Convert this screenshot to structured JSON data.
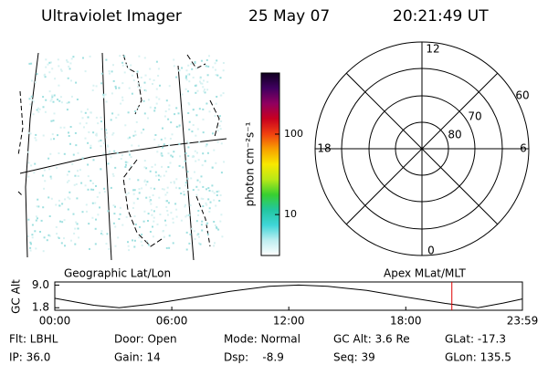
{
  "header": {
    "instrument": "Ultraviolet Imager",
    "date": "25 May 07",
    "time": "20:21:49 UT"
  },
  "colorbar": {
    "label": "photon cm⁻²s⁻¹",
    "log": true,
    "clim": [
      3.1,
      575
    ],
    "ticks": [
      10,
      100
    ],
    "colors": [
      "#ffffff",
      "#bdeef0",
      "#3fd6d8",
      "#22c6a0",
      "#38d030",
      "#b8e818",
      "#f8e800",
      "#f8a000",
      "#f04010",
      "#c80020",
      "#900060",
      "#400060",
      "#100020"
    ]
  },
  "polar": {
    "labels": {
      "top": "12",
      "bottom": "0",
      "left": "18",
      "right": "6"
    },
    "rings": [
      "60",
      "70",
      "80"
    ]
  },
  "altitude_plot": {
    "left_label": "Geographic Lat/Lon",
    "right_label": "Apex MLat/MLT",
    "ylabel": "GC Alt",
    "ylim": [
      1.0,
      10.0
    ],
    "yticks": [
      {
        "value": 9.0,
        "label": "9.0"
      },
      1.8
    ],
    "xlim": [
      0,
      23.983
    ],
    "xticks": [
      {
        "value": 0,
        "label": "00:00"
      },
      {
        "value": 6,
        "label": "06:00"
      },
      {
        "value": 12,
        "label": "12:00"
      },
      {
        "value": 18,
        "label": "18:00"
      },
      {
        "value": 23.983,
        "label": "23:59"
      }
    ],
    "x": [
      0,
      1,
      2,
      3.3,
      5,
      7,
      9,
      11,
      12.5,
      14,
      16,
      18,
      20,
      21.7,
      23,
      23.98
    ],
    "values": [
      4.8,
      3.7,
      2.6,
      1.8,
      3.0,
      5.0,
      7.0,
      8.6,
      9.0,
      8.6,
      7.3,
      5.2,
      3.2,
      1.8,
      3.3,
      4.6
    ],
    "line_color": "#000000",
    "marker_color": "#e00000"
  },
  "info": [
    [
      "Flt: LBHL",
      "Door: Open",
      "Mode: Normal",
      "GC Alt: 3.6 Re",
      "GLat: -17.3"
    ],
    [
      "IP: 36.0",
      "Gain: 14",
      "Dsp:    -8.9",
      "Seq: 39",
      "GLon: 135.5"
    ]
  ]
}
